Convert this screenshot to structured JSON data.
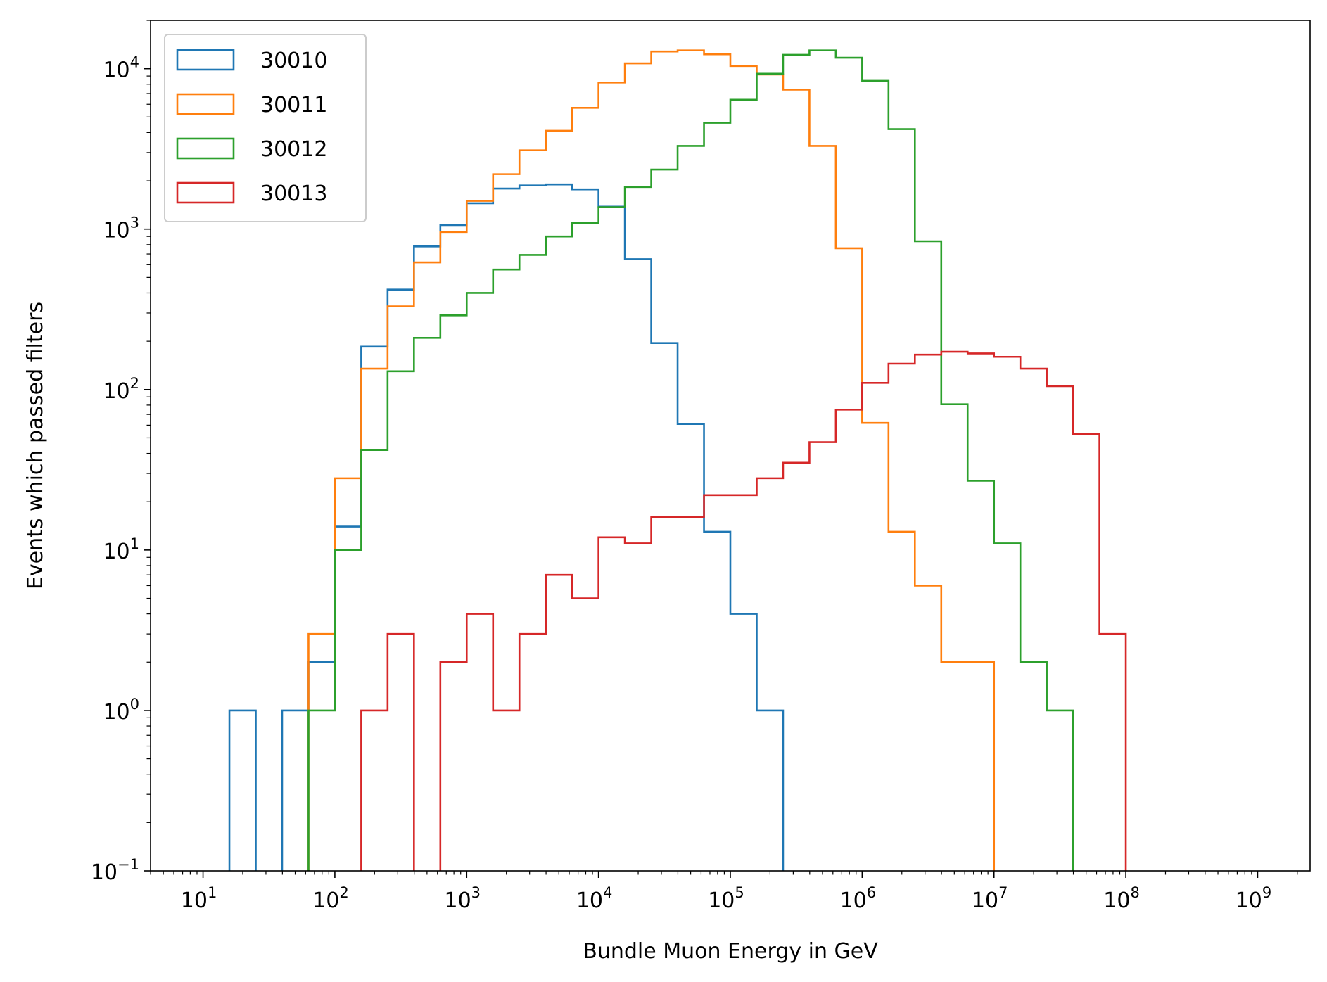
{
  "chart_data": {
    "type": "histogram-step",
    "title": "",
    "xlabel": "Bundle Muon Energy in GeV",
    "ylabel": "Events which passed filters",
    "xscale": "log",
    "yscale": "log",
    "xlim": [
      4,
      2500000000
    ],
    "ylim": [
      0.1,
      20000
    ],
    "x_major_ticks": [
      {
        "base": "10",
        "exp": "1",
        "value": 10
      },
      {
        "base": "10",
        "exp": "2",
        "value": 100
      },
      {
        "base": "10",
        "exp": "3",
        "value": 1000
      },
      {
        "base": "10",
        "exp": "4",
        "value": 10000
      },
      {
        "base": "10",
        "exp": "5",
        "value": 100000
      },
      {
        "base": "10",
        "exp": "6",
        "value": 1000000
      },
      {
        "base": "10",
        "exp": "7",
        "value": 10000000
      },
      {
        "base": "10",
        "exp": "8",
        "value": 100000000
      },
      {
        "base": "10",
        "exp": "9",
        "value": 1000000000
      }
    ],
    "y_major_ticks": [
      {
        "base": "10",
        "exp": "−1",
        "value": 0.1
      },
      {
        "base": "10",
        "exp": "0",
        "value": 1
      },
      {
        "base": "10",
        "exp": "1",
        "value": 10
      },
      {
        "base": "10",
        "exp": "2",
        "value": 100
      },
      {
        "base": "10",
        "exp": "3",
        "value": 1000
      },
      {
        "base": "10",
        "exp": "4",
        "value": 10000
      }
    ],
    "bin_edges_log10": [
      1.2,
      1.4,
      1.6,
      1.8,
      2.0,
      2.2,
      2.4,
      2.6,
      2.8,
      3.0,
      3.2,
      3.4,
      3.6,
      3.8,
      4.0,
      4.2,
      4.4,
      4.6,
      4.8,
      5.0,
      5.2,
      5.4,
      5.6,
      5.8,
      6.0,
      6.2,
      6.4,
      6.6,
      6.8,
      7.0,
      7.2,
      7.4,
      7.6,
      7.8,
      8.0
    ],
    "grid": false,
    "legend_position": "upper-left",
    "series": [
      {
        "name": "30010",
        "color": "#1f77b4",
        "counts": [
          1,
          0,
          1,
          2,
          14,
          185,
          420,
          780,
          1060,
          1450,
          1790,
          1870,
          1900,
          1770,
          1380,
          650,
          195,
          61,
          13,
          4,
          1,
          0,
          0,
          0,
          0,
          0,
          0,
          0,
          0,
          0,
          0,
          0,
          0,
          0
        ]
      },
      {
        "name": "30011",
        "color": "#ff7f0e",
        "counts": [
          0,
          0,
          0,
          3,
          28,
          135,
          330,
          620,
          960,
          1500,
          2200,
          3100,
          4100,
          5700,
          8200,
          10800,
          12800,
          13000,
          12300,
          10400,
          9200,
          7400,
          3300,
          760,
          62,
          13,
          6,
          2,
          2,
          0,
          0,
          0,
          0,
          0
        ]
      },
      {
        "name": "30012",
        "color": "#2ca02c",
        "counts": [
          0,
          0,
          0,
          1,
          10,
          42,
          130,
          210,
          290,
          400,
          560,
          690,
          900,
          1090,
          1370,
          1830,
          2350,
          3300,
          4600,
          6400,
          9300,
          12200,
          13000,
          11700,
          8400,
          4200,
          840,
          81,
          27,
          11,
          2,
          1,
          0,
          0
        ]
      },
      {
        "name": "30013",
        "color": "#d62728",
        "counts": [
          0,
          0,
          0,
          0,
          0,
          1,
          3,
          0,
          2,
          4,
          1,
          3,
          7,
          5,
          12,
          11,
          16,
          16,
          22,
          22,
          28,
          35,
          47,
          75,
          110,
          145,
          165,
          172,
          168,
          160,
          135,
          105,
          53,
          3
        ]
      }
    ]
  }
}
